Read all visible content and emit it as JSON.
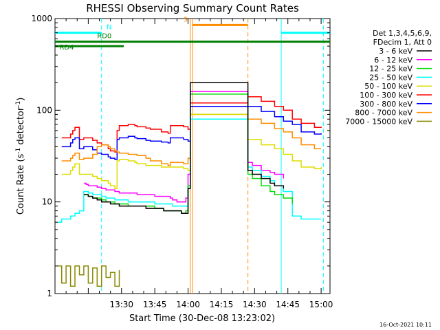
{
  "chart_data": {
    "type": "line",
    "title": "RHESSI Observing Summary Count Rates",
    "xlabel": "Start Time (30-Dec-08 13:23:02)",
    "ylabel_main": "Count Rate (s",
    "ylabel_sup1": "-1",
    "ylabel_mid": " detector",
    "ylabel_sup2": "-1",
    "ylabel_end": ")",
    "yscale": "log",
    "ylim": [
      1,
      1000
    ],
    "xlim_minutes": [
      -23,
      101
    ],
    "x_ticks": [
      {
        "m": 7,
        "label": "13:30"
      },
      {
        "m": 22,
        "label": "13:45"
      },
      {
        "m": 37,
        "label": "14:00"
      },
      {
        "m": 52,
        "label": "14:15"
      },
      {
        "m": 67,
        "label": "14:30"
      },
      {
        "m": 82,
        "label": "14:45"
      },
      {
        "m": 97,
        "label": "15:00"
      }
    ],
    "y_ticks": [
      {
        "v": 1,
        "label": "1"
      },
      {
        "v": 10,
        "label": "10"
      },
      {
        "v": 100,
        "label": "100"
      },
      {
        "v": 1000,
        "label": "1000"
      }
    ],
    "legend": {
      "header": [
        "Det 1,3,4,5,6,9,",
        "FDecim 1, Att 0"
      ],
      "position": "right",
      "entries": [
        {
          "label": "3 - 6 keV",
          "color": "#000000"
        },
        {
          "label": "6 - 12 keV",
          "color": "#ff00ff"
        },
        {
          "label": "12 - 25 keV",
          "color": "#00dd00"
        },
        {
          "label": "25 - 50 keV",
          "color": "#00ffff"
        },
        {
          "label": "50 - 100 keV",
          "color": "#dddd00"
        },
        {
          "label": "100 - 300 keV",
          "color": "#ff0000"
        },
        {
          "label": "300 - 800 keV",
          "color": "#0000ff"
        },
        {
          "label": "800 - 7000 keV",
          "color": "#ff8c00"
        },
        {
          "label": "7000 - 15000 keV",
          "color": "#888800"
        }
      ]
    },
    "series": [
      {
        "name": "100 - 300 keV",
        "color": "#ff0000",
        "x": [
          -20,
          -16,
          -15,
          -14,
          -12,
          -10,
          -6,
          -4,
          -2,
          1,
          2,
          4,
          5,
          6,
          10,
          13,
          14,
          18,
          20,
          25,
          28,
          29,
          35,
          37,
          38,
          64,
          70,
          76,
          80,
          84,
          88,
          94,
          97
        ],
        "y": [
          50,
          55,
          60,
          65,
          48,
          50,
          47,
          44,
          42,
          38,
          36,
          35,
          60,
          68,
          70,
          68,
          66,
          64,
          62,
          58,
          56,
          68,
          66,
          62,
          120,
          140,
          125,
          110,
          100,
          80,
          72,
          65,
          66
        ]
      },
      {
        "name": "300 - 800 keV",
        "color": "#0000ff",
        "x": [
          -20,
          -16,
          -15,
          -14,
          -12,
          -10,
          -6,
          -4,
          -2,
          1,
          2,
          4,
          5,
          6,
          10,
          13,
          14,
          18,
          20,
          25,
          28,
          29,
          35,
          37,
          38,
          64,
          70,
          76,
          80,
          84,
          88,
          94,
          97
        ],
        "y": [
          40,
          44,
          48,
          50,
          38,
          40,
          37,
          34,
          33,
          31,
          30,
          29,
          48,
          50,
          52,
          50,
          49,
          47,
          46,
          45,
          44,
          50,
          48,
          46,
          110,
          110,
          97,
          85,
          76,
          70,
          58,
          55,
          56
        ]
      },
      {
        "name": "800 - 7000 keV",
        "color": "#ff8c00",
        "x": [
          -20,
          -16,
          -15,
          -14,
          -12,
          -10,
          -6,
          -4,
          -2,
          1,
          2,
          4,
          5,
          6,
          10,
          13,
          14,
          18,
          20,
          25,
          28,
          29,
          35,
          37,
          38,
          64,
          70,
          76,
          80,
          84,
          88,
          94,
          97
        ],
        "y": [
          28,
          30,
          32,
          34,
          29,
          30,
          33,
          40,
          42,
          40,
          38,
          36,
          35,
          34,
          33,
          33,
          32,
          30,
          28,
          26,
          25,
          27,
          26,
          30,
          90,
          80,
          72,
          63,
          58,
          50,
          42,
          38,
          38
        ]
      },
      {
        "name": "50 - 100 keV",
        "color": "#dddd00",
        "x": [
          -20,
          -16,
          -15,
          -14,
          -12,
          -10,
          -6,
          -4,
          -2,
          1,
          2,
          4,
          5,
          6,
          10,
          13,
          14,
          18,
          20,
          25,
          28,
          29,
          35,
          37,
          38,
          64,
          70,
          76,
          80,
          84,
          88,
          94,
          97
        ],
        "y": [
          20,
          22,
          24,
          26,
          20,
          20,
          19,
          18,
          17,
          16,
          15,
          14,
          28,
          29,
          28,
          27,
          26,
          25,
          25,
          24,
          24,
          24,
          23,
          22,
          90,
          48,
          42,
          38,
          33,
          28,
          24,
          23,
          24
        ]
      },
      {
        "name": "6 - 12 keV",
        "color": "#ff00ff",
        "x": [
          -10,
          -9,
          -8,
          -6,
          -4,
          -2,
          0,
          2,
          4,
          6,
          10,
          14,
          18,
          22,
          26,
          29,
          30,
          32,
          34,
          35,
          36,
          37,
          38,
          64,
          66,
          70,
          74,
          76,
          80
        ],
        "y": [
          16,
          15.5,
          15,
          15,
          14.5,
          14,
          13.5,
          13.5,
          13,
          12.5,
          12.5,
          12,
          12,
          11.5,
          11.5,
          11,
          10.5,
          10,
          10,
          10,
          11,
          20,
          160,
          27,
          25,
          22,
          21,
          20,
          18
        ]
      },
      {
        "name": "25 - 50 keV",
        "color": "#00ffff",
        "x": [
          -22,
          -20,
          -18,
          -16,
          -15,
          -14,
          -12,
          -10,
          -9,
          -8,
          -6,
          -4,
          -2,
          0,
          2,
          4,
          6,
          10,
          14,
          18,
          22,
          26,
          30,
          34,
          36,
          37,
          38,
          64,
          66,
          70,
          74,
          76,
          80,
          84,
          88,
          94,
          97
        ],
        "y": [
          6,
          6.5,
          6.5,
          7,
          7,
          7.5,
          8,
          13,
          13,
          12.5,
          12,
          12,
          11.5,
          11,
          11,
          10.5,
          10.5,
          10,
          10,
          10,
          9.5,
          9.5,
          9,
          9,
          9,
          15,
          80,
          24,
          22,
          19,
          17,
          15,
          13,
          7,
          6.5,
          6.5,
          6.5
        ]
      },
      {
        "name": "12 - 25 keV",
        "color": "#00dd00",
        "x": [
          -10,
          -9,
          -8,
          -6,
          -4,
          -2,
          0,
          2,
          4,
          6,
          10,
          14,
          18,
          22,
          26,
          30,
          34,
          35,
          36,
          37,
          38,
          64,
          66,
          70,
          74,
          76,
          80,
          84
        ],
        "y": [
          12,
          12,
          11.5,
          11,
          11,
          10.5,
          10,
          10,
          9.5,
          9.5,
          9,
          9,
          9,
          8.5,
          8,
          8,
          7.5,
          7.5,
          8,
          15,
          150,
          20,
          18,
          15,
          13,
          12,
          11,
          9.5
        ]
      },
      {
        "name": "3 - 6 keV",
        "color": "#000000",
        "x": [
          -10,
          -8,
          -6,
          -4,
          -2,
          0,
          2,
          4,
          6,
          10,
          14,
          18,
          22,
          26,
          30,
          34,
          36,
          37,
          38,
          64,
          66,
          70,
          74,
          76,
          80
        ],
        "y": [
          12,
          11.5,
          11,
          10.5,
          10,
          10,
          9.5,
          9.5,
          9,
          9,
          9,
          8.5,
          8.5,
          8,
          8,
          7.5,
          7.5,
          14,
          200,
          22,
          20,
          18,
          16,
          15,
          14
        ]
      },
      {
        "name": "7000 - 15000 keV",
        "color": "#888800",
        "x": [
          -22,
          -20,
          -18,
          -16,
          -14,
          -12,
          -10,
          -8,
          -6,
          -4,
          -2,
          0,
          2,
          4,
          6
        ],
        "y": [
          2,
          1.3,
          2,
          1.2,
          2,
          1.6,
          2,
          1.3,
          1.9,
          1.2,
          2,
          1.5,
          1.7,
          1.2,
          1.8
        ]
      }
    ],
    "state_bars": [
      {
        "label": "N",
        "color": "#00ffff",
        "v": 700,
        "segments": [
          [
            -23,
            -2
          ],
          [
            79,
            101
          ]
        ]
      },
      {
        "label": "S",
        "color": "#ff8c00",
        "v": 850,
        "segments": [
          [
            39,
            64
          ]
        ]
      },
      {
        "label": "RD0",
        "color": "#007f00",
        "v": 560,
        "segments": [
          [
            -23,
            101
          ]
        ]
      },
      {
        "label": "RD4",
        "color": "#007f00",
        "v": 500,
        "segments": [
          [
            -23,
            8
          ]
        ]
      }
    ],
    "vlines": [
      {
        "m": -2,
        "color": "#00ffff",
        "style": "dashed"
      },
      {
        "m": 38,
        "color": "#ff8c00",
        "style": "solid"
      },
      {
        "m": 39,
        "color": "#ff8c00",
        "style": "solid"
      },
      {
        "m": 64,
        "color": "#ff8c00",
        "style": "dashed"
      },
      {
        "m": 79,
        "color": "#00ffff",
        "style": "solid"
      },
      {
        "m": 98,
        "color": "#00ffff",
        "style": "dashed"
      }
    ],
    "footer_date": "16-Oct-2021 10:11"
  }
}
